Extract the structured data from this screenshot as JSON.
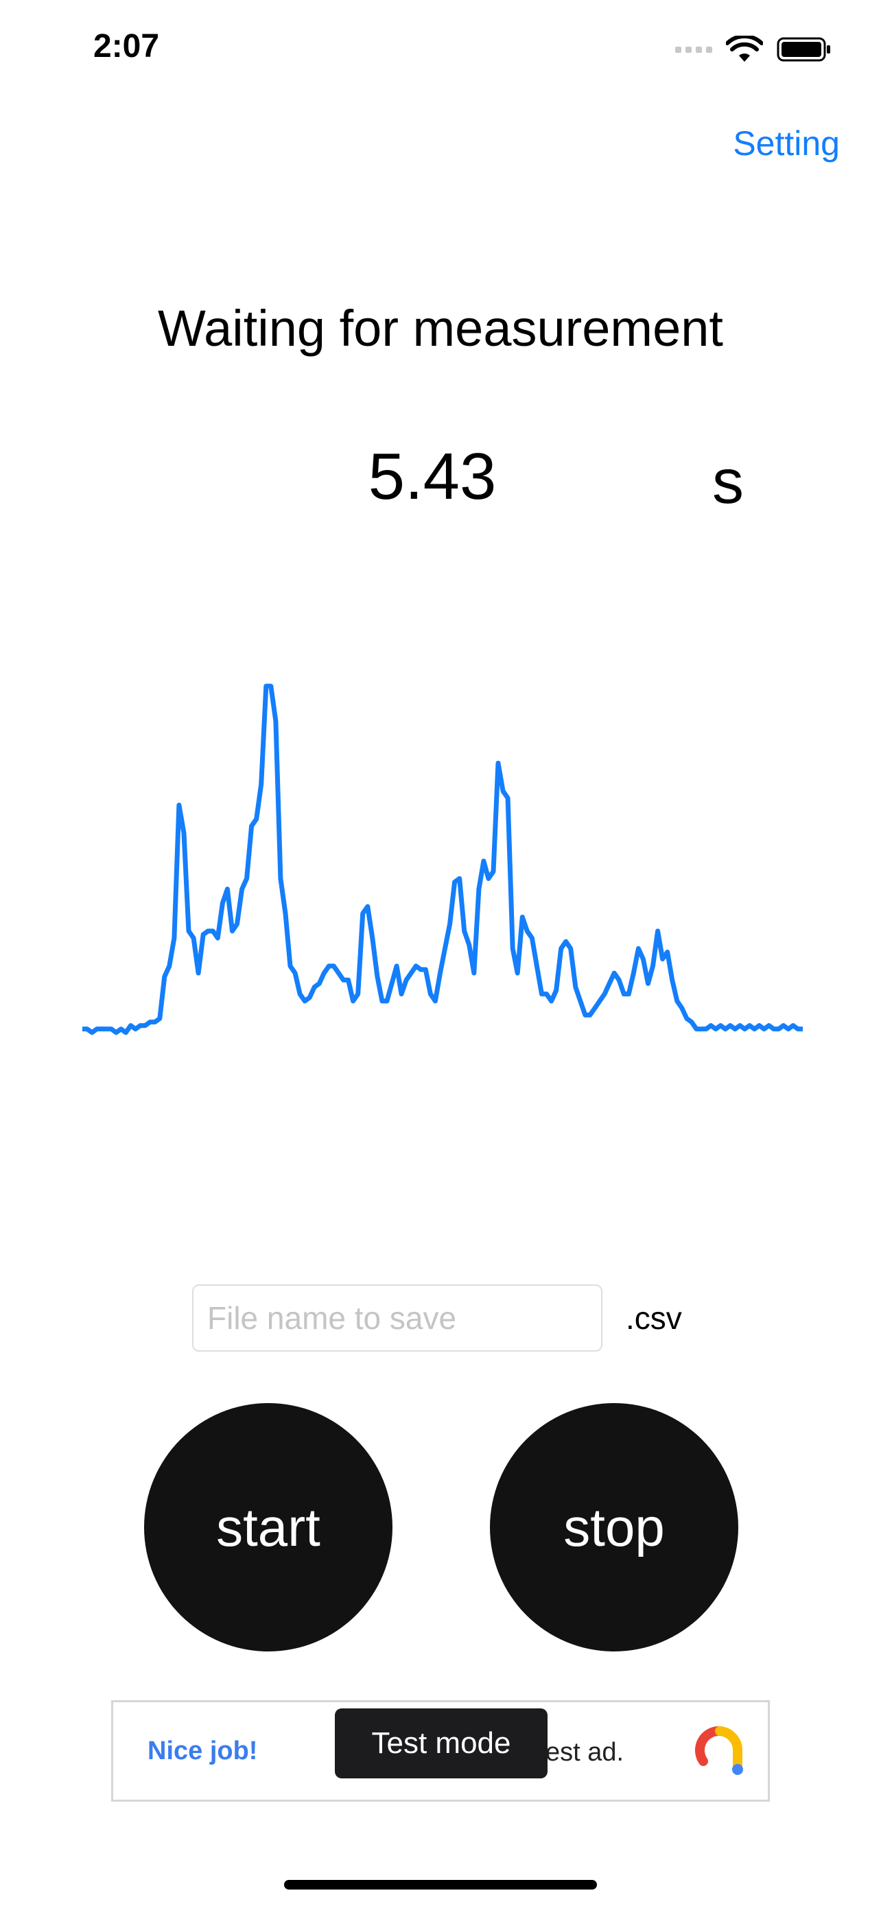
{
  "status_bar": {
    "time": "2:07",
    "icons": [
      "cellular-signal-icon",
      "wifi-icon",
      "battery-icon"
    ]
  },
  "nav": {
    "setting_label": "Setting"
  },
  "measurement": {
    "status_text": "Waiting for measurement",
    "value": "5.43",
    "unit": "s"
  },
  "chart_data": {
    "type": "line",
    "title": "",
    "xlabel": "",
    "ylabel": "",
    "grid": false,
    "legend": "none",
    "color": "#147efb",
    "series": [
      {
        "values": [
          2,
          2,
          1,
          2,
          2,
          2,
          2,
          1,
          2,
          1,
          3,
          2,
          3,
          3,
          4,
          4,
          5,
          17,
          20,
          28,
          66,
          58,
          30,
          28,
          18,
          29,
          30,
          30,
          28,
          38,
          42,
          30,
          32,
          42,
          45,
          60,
          62,
          72,
          100,
          100,
          90,
          45,
          35,
          20,
          18,
          12,
          10,
          11,
          14,
          15,
          18,
          20,
          20,
          18,
          16,
          16,
          10,
          12,
          35,
          37,
          28,
          17,
          10,
          10,
          15,
          20,
          12,
          16,
          18,
          20,
          19,
          19,
          12,
          10,
          18,
          25,
          32,
          44,
          45,
          30,
          26,
          18,
          42,
          50,
          45,
          47,
          78,
          70,
          68,
          25,
          18,
          34,
          30,
          28,
          20,
          12,
          12,
          10,
          13,
          25,
          27,
          25,
          14,
          10,
          6,
          6,
          8,
          10,
          12,
          15,
          18,
          16,
          12,
          12,
          18,
          25,
          22,
          15,
          20,
          30,
          22,
          24,
          16,
          10,
          8,
          5,
          4,
          2,
          2,
          2,
          3,
          2,
          3,
          2,
          3,
          2,
          3,
          2,
          3,
          2,
          3,
          2,
          3,
          2,
          2,
          3,
          2,
          3,
          2,
          2
        ]
      }
    ],
    "ylim": [
      0,
      100
    ]
  },
  "file_save": {
    "placeholder": "File name to save",
    "value": "",
    "extension": ".csv"
  },
  "controls": {
    "start_label": "start",
    "stop_label": "stop"
  },
  "ad": {
    "left_text": "Nice job!",
    "right_text": "est ad.",
    "badge": "Test mode",
    "logo_icon": "ad-logo-icon"
  }
}
